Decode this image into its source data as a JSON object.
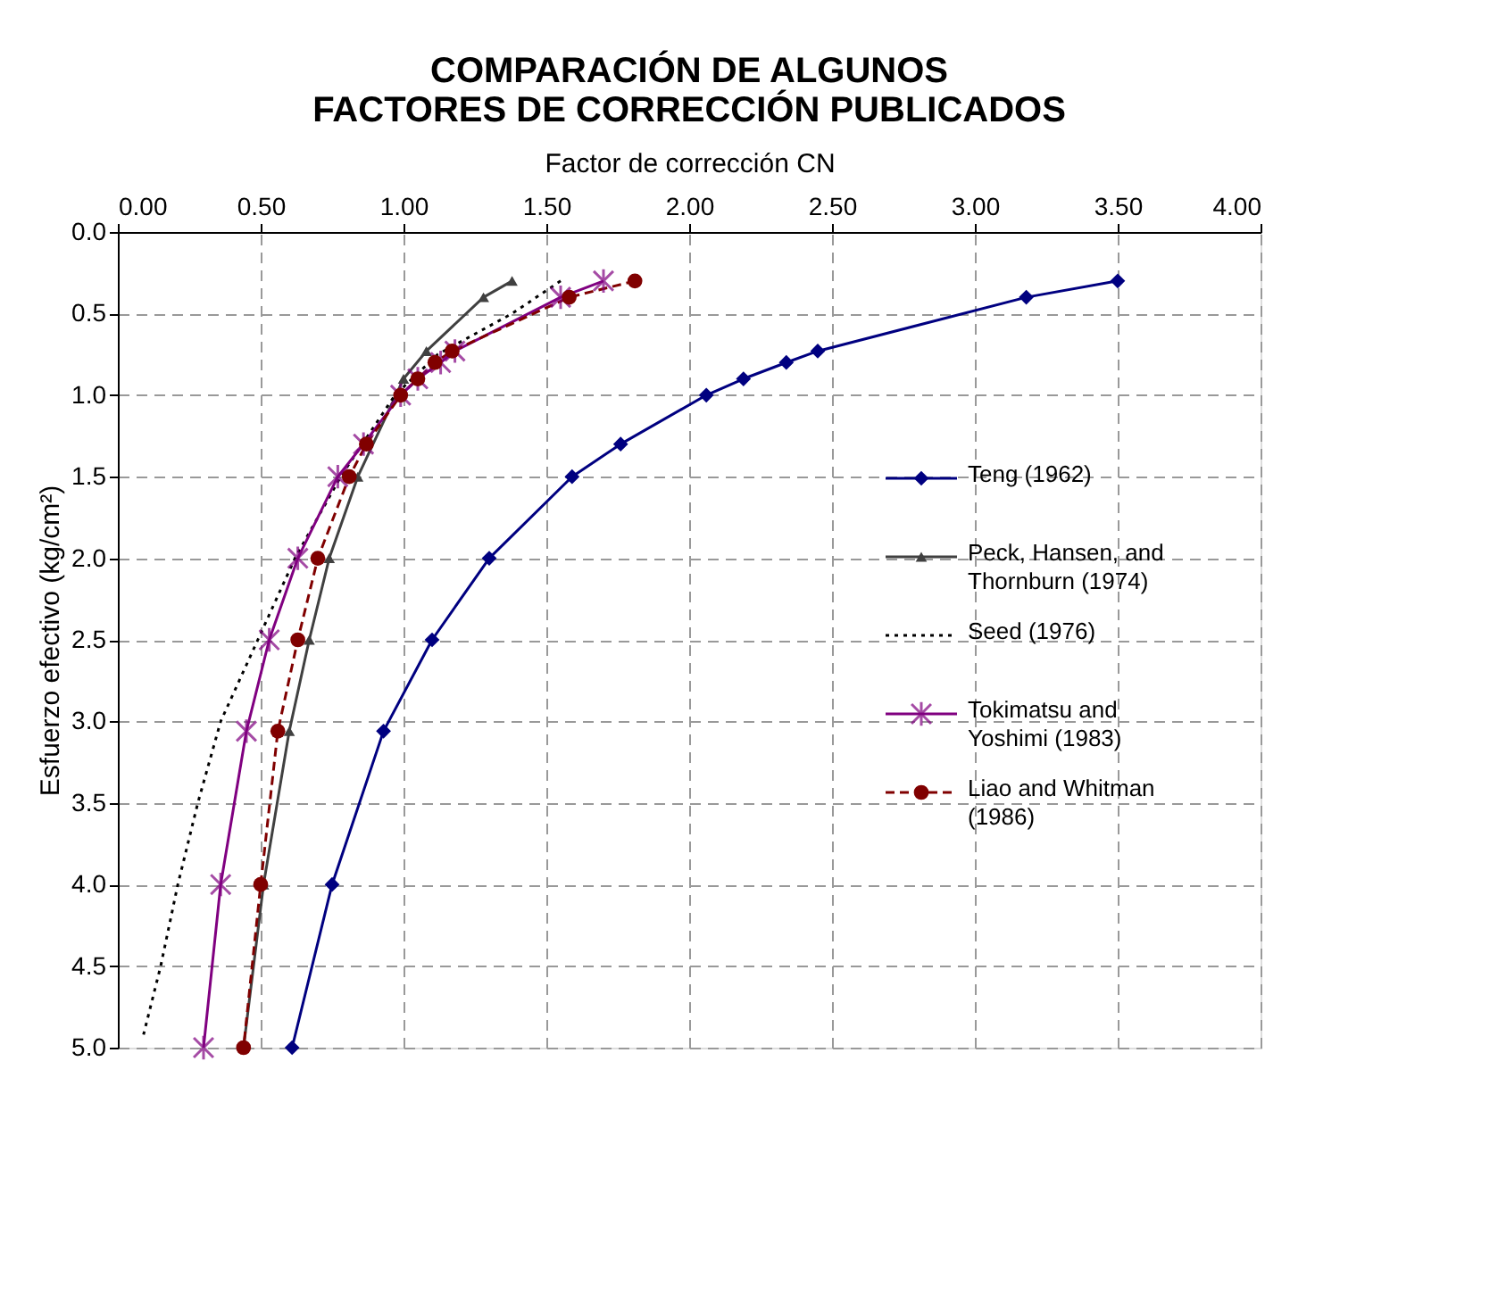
{
  "chart_data": {
    "type": "line",
    "title": [
      "COMPARACIÓN DE ALGUNOS",
      "FACTORES DE CORRECCIÓN PUBLICADOS"
    ],
    "xlabel": "Factor de corrección CN",
    "ylabel": "Esfuerzo efectivo (kg/cm²)",
    "xlim": [
      0,
      4
    ],
    "ylim": [
      5,
      0
    ],
    "xticks": [
      {
        "value": 0,
        "label": "0.00"
      },
      {
        "value": 0.5,
        "label": "0.50"
      },
      {
        "value": 1,
        "label": "1.00"
      },
      {
        "value": 1.5,
        "label": "1.50"
      },
      {
        "value": 2,
        "label": "2.00"
      },
      {
        "value": 2.5,
        "label": "2.50"
      },
      {
        "value": 3,
        "label": "3.00"
      },
      {
        "value": 3.5,
        "label": "3.50"
      },
      {
        "value": 4,
        "label": "4.00"
      }
    ],
    "yticks": [
      {
        "value": 0,
        "label": "0.0"
      },
      {
        "value": 0.5,
        "label": "0.5"
      },
      {
        "value": 1,
        "label": "1.0"
      },
      {
        "value": 1.5,
        "label": "1.5"
      },
      {
        "value": 2,
        "label": "2.0"
      },
      {
        "value": 2.5,
        "label": "2.5"
      },
      {
        "value": 3,
        "label": "3.0"
      },
      {
        "value": 3.5,
        "label": "3.5"
      },
      {
        "value": 4,
        "label": "4.0"
      },
      {
        "value": 4.5,
        "label": "4.5"
      },
      {
        "value": 5,
        "label": "5.0"
      }
    ],
    "grid": true,
    "legend": "right",
    "series": [
      {
        "name": "Teng (1962)",
        "color": "#000080",
        "marker": "diamond",
        "line_style": "solid",
        "x": [
          3.5,
          3.18,
          2.45,
          2.34,
          2.19,
          2.06,
          1.76,
          1.59,
          1.3,
          1.1,
          0.93,
          0.75,
          0.61
        ],
        "values": [
          0.3,
          0.4,
          0.73,
          0.8,
          0.9,
          1.0,
          1.3,
          1.5,
          2.0,
          2.5,
          3.06,
          4.0,
          5.0
        ]
      },
      {
        "name": "Peck, Hansen, and Thornburn (1974)",
        "color": "#404040",
        "marker": "triangle",
        "line_style": "solid",
        "x": [
          1.38,
          1.28,
          1.08,
          1.0,
          0.84,
          0.74,
          0.67,
          0.6,
          0.51,
          0.44
        ],
        "values": [
          0.3,
          0.4,
          0.73,
          0.9,
          1.5,
          2.0,
          2.5,
          3.06,
          4.0,
          5.0
        ]
      },
      {
        "name": "Seed (1976)",
        "color": "#000000",
        "marker": "none",
        "line_style": "dotted",
        "x": [
          1.55,
          1.38,
          1.12,
          0.97,
          0.78,
          0.62,
          0.49,
          0.36,
          0.28,
          0.21,
          0.15,
          0.09
        ],
        "values": [
          0.3,
          0.5,
          0.75,
          1.0,
          1.5,
          2.0,
          2.5,
          3.0,
          3.5,
          4.0,
          4.5,
          4.92
        ]
      },
      {
        "name": "Tokimatsu and Yoshimi (1983)",
        "color": "#800080",
        "marker": "cross",
        "line_style": "solid",
        "x": [
          1.7,
          1.55,
          1.18,
          1.13,
          1.05,
          0.99,
          0.86,
          0.77,
          0.63,
          0.53,
          0.45,
          0.36,
          0.3
        ],
        "values": [
          0.3,
          0.4,
          0.73,
          0.8,
          0.9,
          1.0,
          1.3,
          1.5,
          2.0,
          2.5,
          3.06,
          4.0,
          5.0
        ]
      },
      {
        "name": "Liao and Whitman (1986)",
        "color": "#800000",
        "marker": "circle",
        "line_style": "dashed",
        "x": [
          1.81,
          1.58,
          1.17,
          1.11,
          1.05,
          0.99,
          0.87,
          0.81,
          0.7,
          0.63,
          0.56,
          0.5,
          0.44
        ],
        "values": [
          0.3,
          0.4,
          0.73,
          0.8,
          0.9,
          1.0,
          1.3,
          1.5,
          2.0,
          2.5,
          3.06,
          4.0,
          5.0
        ]
      }
    ]
  }
}
